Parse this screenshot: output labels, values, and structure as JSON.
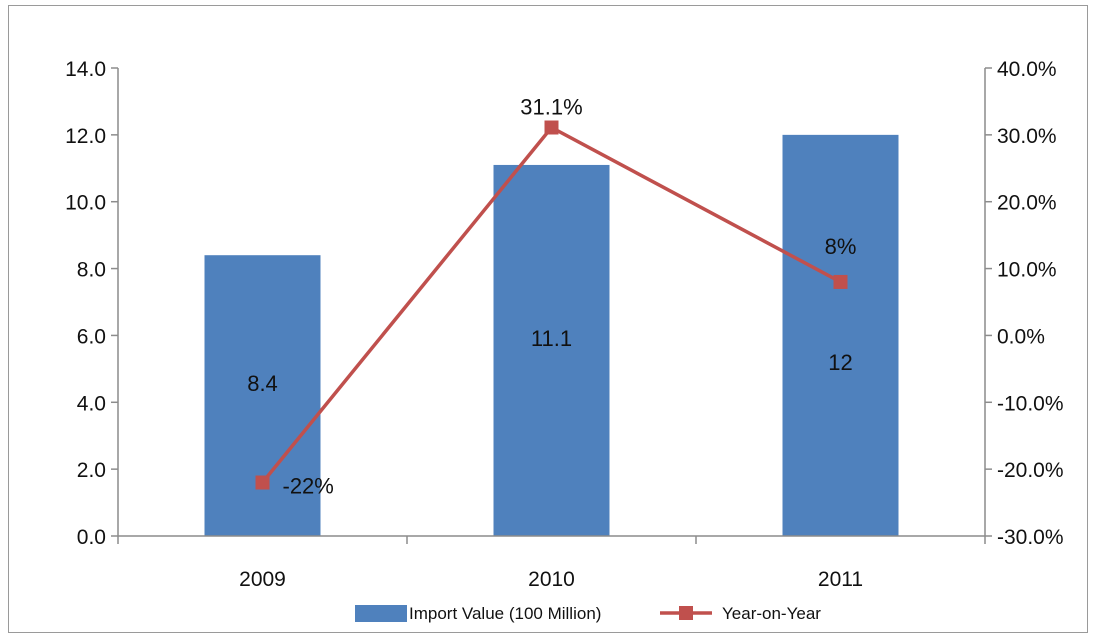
{
  "chart_data": {
    "type": "bar+line",
    "title": "",
    "categories": [
      "2009",
      "2010",
      "2011"
    ],
    "left_axis": {
      "ylim": [
        0,
        14
      ],
      "ticks": [
        "0.0",
        "2.0",
        "4.0",
        "6.0",
        "8.0",
        "10.0",
        "12.0",
        "14.0"
      ]
    },
    "right_axis": {
      "ylim": [
        -30,
        40
      ],
      "unit": "%",
      "ticks": [
        "-30.0%",
        "-20.0%",
        "-10.0%",
        "0.0%",
        "10.0%",
        "20.0%",
        "30.0%",
        "40.0%"
      ]
    },
    "series": [
      {
        "name": "Import Value (100 Million)",
        "type": "bar",
        "axis": "left",
        "color": "#4f81bd",
        "values": [
          8.4,
          11.1,
          12
        ],
        "data_labels": [
          "8.4",
          "11.1",
          "12"
        ]
      },
      {
        "name": "Year-on-Year",
        "type": "line",
        "axis": "right",
        "color": "#c0504d",
        "values": [
          -22,
          31.1,
          8
        ],
        "data_labels": [
          "-22%",
          "31.1%",
          "8%"
        ]
      }
    ],
    "grid": false,
    "legend": "bottom"
  }
}
